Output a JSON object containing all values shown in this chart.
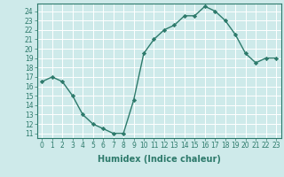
{
  "x": [
    0,
    1,
    2,
    3,
    4,
    5,
    6,
    7,
    8,
    9,
    10,
    11,
    12,
    13,
    14,
    15,
    16,
    17,
    18,
    19,
    20,
    21,
    22,
    23
  ],
  "y": [
    16.5,
    17.0,
    16.5,
    15.0,
    13.0,
    12.0,
    11.5,
    11.0,
    11.0,
    14.5,
    19.5,
    21.0,
    22.0,
    22.5,
    23.5,
    23.5,
    24.5,
    24.0,
    23.0,
    21.5,
    19.5,
    18.5,
    19.0,
    19.0
  ],
  "line_color": "#2d7a6b",
  "marker": "D",
  "markersize": 2.2,
  "linewidth": 1.0,
  "bg_color": "#ceeaea",
  "grid_major_color": "#ffffff",
  "grid_minor_color": "#ddf0f0",
  "xlabel": "Humidex (Indice chaleur)",
  "xlim": [
    -0.5,
    23.5
  ],
  "ylim": [
    10.5,
    24.8
  ],
  "yticks": [
    11,
    12,
    13,
    14,
    15,
    16,
    17,
    18,
    19,
    20,
    21,
    22,
    23,
    24
  ],
  "xticks": [
    0,
    1,
    2,
    3,
    4,
    5,
    6,
    7,
    8,
    9,
    10,
    11,
    12,
    13,
    14,
    15,
    16,
    17,
    18,
    19,
    20,
    21,
    22,
    23
  ],
  "tick_fontsize": 5.5,
  "xlabel_fontsize": 7.0,
  "spine_color": "#2d7a6b"
}
